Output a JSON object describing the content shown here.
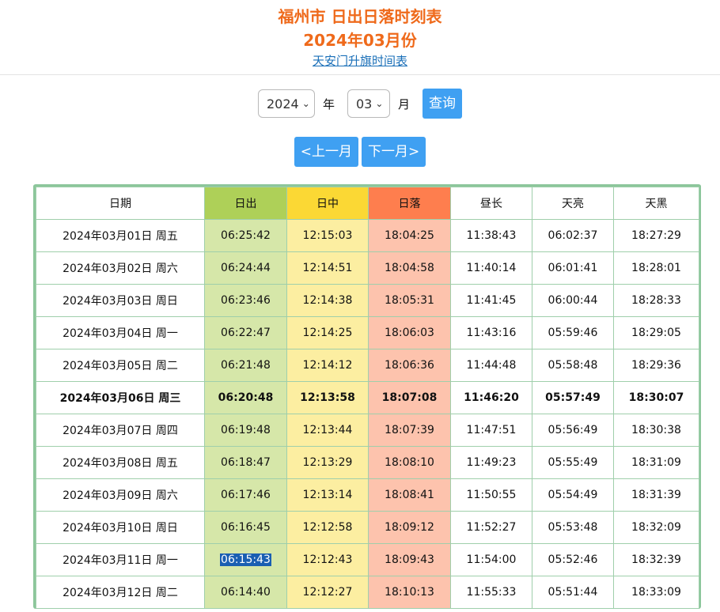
{
  "header": {
    "title": "福州市 日出日落时刻表",
    "subtitle": "2024年03月份",
    "link": "天安门升旗时间表"
  },
  "controls": {
    "year_value": "2024",
    "year_unit": "年",
    "month_value": "03",
    "month_unit": "月",
    "query_label": "查询",
    "prev_label": "<上一月",
    "next_label": "下一月>"
  },
  "table": {
    "headers": [
      "日期",
      "日出",
      "日中",
      "日落",
      "昼长",
      "天亮",
      "天黑"
    ],
    "highlight_colors": {
      "sunrise": "#aed058",
      "noon": "#fbd834",
      "sunset": "#fe7e4e"
    },
    "rows": [
      {
        "date": "2024年03月01日 周五",
        "sunrise": "06:25:42",
        "noon": "12:15:03",
        "sunset": "18:04:25",
        "daylength": "11:38:43",
        "dawn": "06:02:37",
        "dusk": "18:27:29"
      },
      {
        "date": "2024年03月02日 周六",
        "sunrise": "06:24:44",
        "noon": "12:14:51",
        "sunset": "18:04:58",
        "daylength": "11:40:14",
        "dawn": "06:01:41",
        "dusk": "18:28:01"
      },
      {
        "date": "2024年03月03日 周日",
        "sunrise": "06:23:46",
        "noon": "12:14:38",
        "sunset": "18:05:31",
        "daylength": "11:41:45",
        "dawn": "06:00:44",
        "dusk": "18:28:33"
      },
      {
        "date": "2024年03月04日 周一",
        "sunrise": "06:22:47",
        "noon": "12:14:25",
        "sunset": "18:06:03",
        "daylength": "11:43:16",
        "dawn": "05:59:46",
        "dusk": "18:29:05"
      },
      {
        "date": "2024年03月05日 周二",
        "sunrise": "06:21:48",
        "noon": "12:14:12",
        "sunset": "18:06:36",
        "daylength": "11:44:48",
        "dawn": "05:58:48",
        "dusk": "18:29:36"
      },
      {
        "date": "2024年03月06日 周三",
        "sunrise": "06:20:48",
        "noon": "12:13:58",
        "sunset": "18:07:08",
        "daylength": "11:46:20",
        "dawn": "05:57:49",
        "dusk": "18:30:07"
      },
      {
        "date": "2024年03月07日 周四",
        "sunrise": "06:19:48",
        "noon": "12:13:44",
        "sunset": "18:07:39",
        "daylength": "11:47:51",
        "dawn": "05:56:49",
        "dusk": "18:30:38"
      },
      {
        "date": "2024年03月08日 周五",
        "sunrise": "06:18:47",
        "noon": "12:13:29",
        "sunset": "18:08:10",
        "daylength": "11:49:23",
        "dawn": "05:55:49",
        "dusk": "18:31:09"
      },
      {
        "date": "2024年03月09日 周六",
        "sunrise": "06:17:46",
        "noon": "12:13:14",
        "sunset": "18:08:41",
        "daylength": "11:50:55",
        "dawn": "05:54:49",
        "dusk": "18:31:39"
      },
      {
        "date": "2024年03月10日 周日",
        "sunrise": "06:16:45",
        "noon": "12:12:58",
        "sunset": "18:09:12",
        "daylength": "11:52:27",
        "dawn": "05:53:48",
        "dusk": "18:32:09"
      },
      {
        "date": "2024年03月11日 周一",
        "sunrise": "06:15:43",
        "noon": "12:12:43",
        "sunset": "18:09:43",
        "daylength": "11:54:00",
        "dawn": "05:52:46",
        "dusk": "18:32:39"
      },
      {
        "date": "2024年03月12日 周二",
        "sunrise": "06:14:40",
        "noon": "12:12:27",
        "sunset": "18:10:13",
        "daylength": "11:55:33",
        "dawn": "05:51:44",
        "dusk": "18:33:09"
      }
    ]
  }
}
